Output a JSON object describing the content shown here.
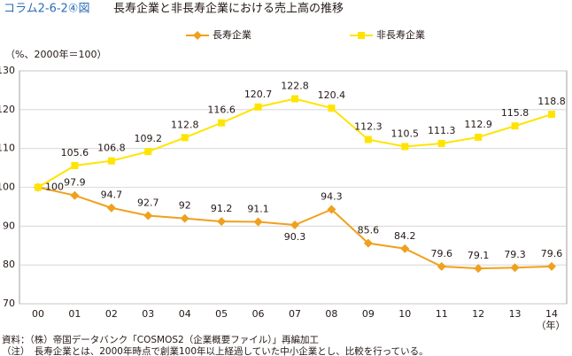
{
  "chart_data": {
    "type": "line",
    "figure_number": "コラム2-6-2④図",
    "title": "長寿企業と非長寿企業における売上高の推移",
    "y_axis_label": "（%、2000年＝100）",
    "x_axis_label": "（年）",
    "categories": [
      "00",
      "01",
      "02",
      "03",
      "04",
      "05",
      "06",
      "07",
      "08",
      "09",
      "10",
      "11",
      "12",
      "13",
      "14"
    ],
    "series": [
      {
        "name": "長寿企業",
        "color": "#f0a01e",
        "marker": "diamond",
        "values": [
          100,
          97.9,
          94.7,
          92.7,
          92,
          91.2,
          91.1,
          90.3,
          94.3,
          85.6,
          84.2,
          79.6,
          79.1,
          79.3,
          79.6
        ]
      },
      {
        "name": "非長寿企業",
        "color": "#ffe400",
        "marker": "square",
        "values": [
          100,
          105.6,
          106.8,
          109.2,
          112.8,
          116.6,
          120.7,
          122.8,
          120.4,
          112.3,
          110.5,
          111.3,
          112.9,
          115.8,
          118.8
        ],
        "value_labels": [
          null,
          "105.6",
          "106.8",
          "109.2",
          "112.8",
          "116.6",
          "120.7",
          "122.8",
          "120.4",
          "112.3",
          "110.5",
          "111.3",
          "112.9",
          "115.8",
          "118.8"
        ]
      }
    ],
    "ylim": [
      70,
      130
    ],
    "yticks": [
      70,
      80,
      90,
      100,
      110,
      120,
      130
    ],
    "grid": true,
    "legend": "top",
    "notes": [
      "資料：（株）帝国データバンク「COSMOS2（企業概要ファイル）」再編加工",
      "（注）　長寿企業とは、2000年時点で創業100年以上経過していた中小企業とし、比較を行っている。"
    ]
  }
}
